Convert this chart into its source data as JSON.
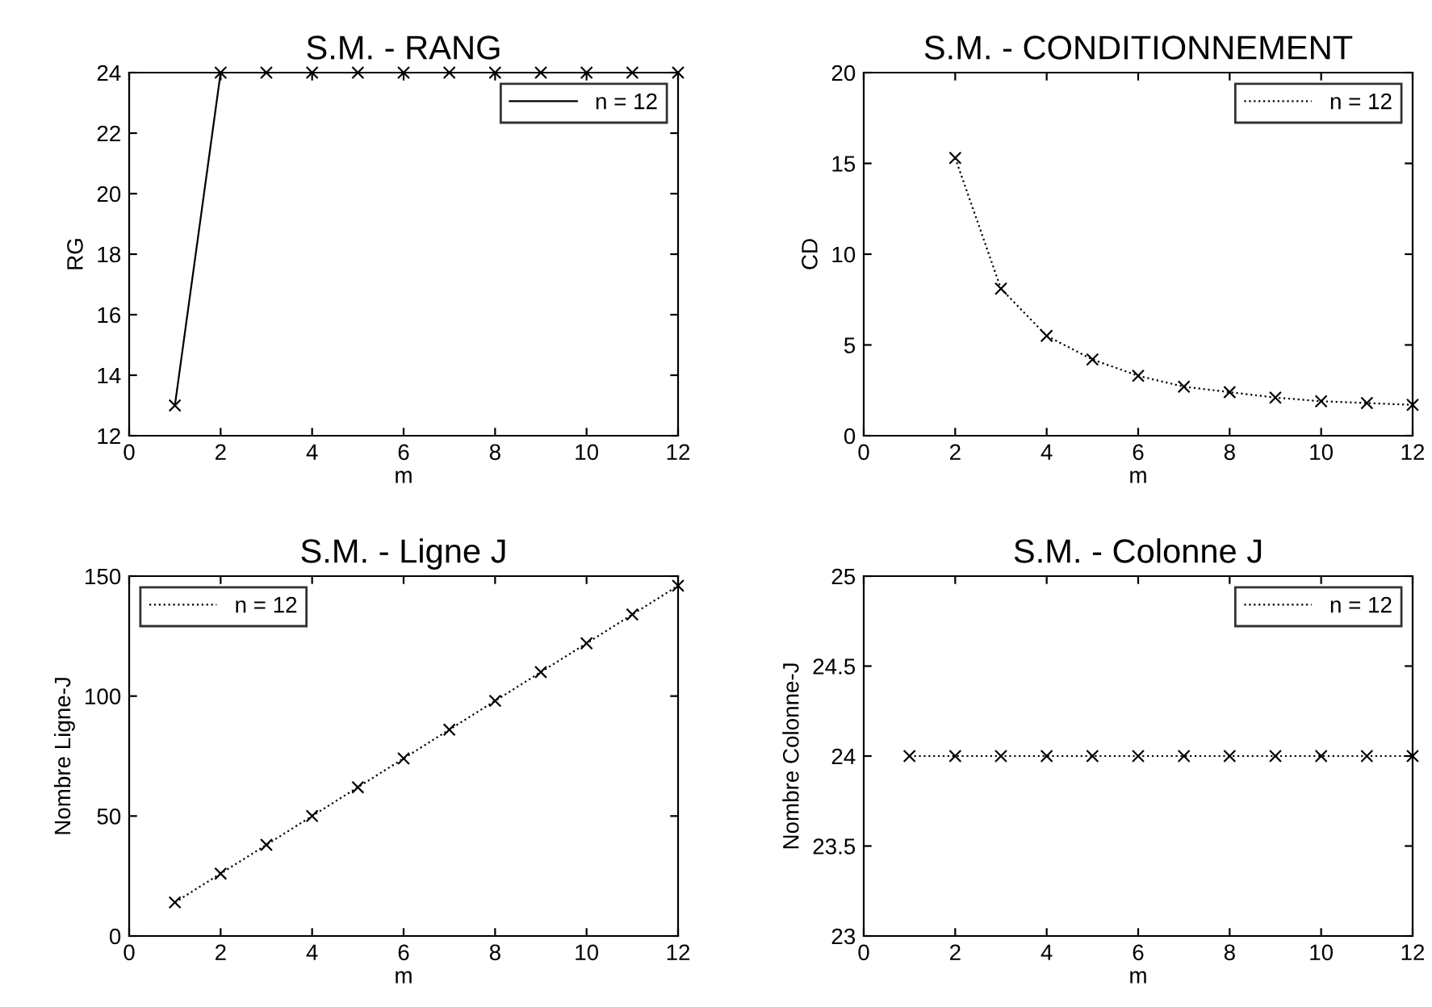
{
  "chart_data": [
    {
      "type": "line",
      "title": "S.M. - RANG",
      "xlabel": "m",
      "ylabel": "RG",
      "xlim": [
        0,
        12
      ],
      "xticks": [
        0,
        2,
        4,
        6,
        8,
        10,
        12
      ],
      "ylim": [
        12,
        24
      ],
      "yticks": [
        12,
        14,
        16,
        18,
        20,
        22,
        24
      ],
      "grid": false,
      "legend": "top right",
      "marker": "cross",
      "line_style": "solid",
      "series": [
        {
          "name": "n = 12",
          "color": "#000000",
          "x": [
            1,
            2,
            3,
            4,
            5,
            6,
            7,
            8,
            9,
            10,
            11,
            12
          ],
          "values": [
            13,
            24,
            24,
            24,
            24,
            24,
            24,
            24,
            24,
            24,
            24,
            24
          ]
        }
      ]
    },
    {
      "type": "line",
      "title": "S.M. - CONDITIONNEMENT",
      "xlabel": "m",
      "ylabel": "CD",
      "xlim": [
        0,
        12
      ],
      "xticks": [
        0,
        2,
        4,
        6,
        8,
        10,
        12
      ],
      "ylim": [
        0,
        20
      ],
      "yticks": [
        0,
        5,
        10,
        15,
        20
      ],
      "grid": false,
      "legend": "top right",
      "marker": "cross",
      "line_style": "dotted",
      "series": [
        {
          "name": "n = 12",
          "color": "#000000",
          "x": [
            2,
            3,
            4,
            5,
            6,
            7,
            8,
            9,
            10,
            11,
            12
          ],
          "values": [
            15.3,
            8.1,
            5.5,
            4.2,
            3.3,
            2.7,
            2.4,
            2.1,
            1.9,
            1.8,
            1.7
          ]
        }
      ]
    },
    {
      "type": "line",
      "title": "S.M. - Ligne J",
      "xlabel": "m",
      "ylabel": "Nombre Ligne-J",
      "xlim": [
        0,
        12
      ],
      "xticks": [
        0,
        2,
        4,
        6,
        8,
        10,
        12
      ],
      "ylim": [
        0,
        150
      ],
      "yticks": [
        0,
        50,
        100,
        150
      ],
      "grid": false,
      "legend": "top left",
      "marker": "cross",
      "line_style": "dotted",
      "series": [
        {
          "name": "n = 12",
          "color": "#000000",
          "x": [
            1,
            2,
            3,
            4,
            5,
            6,
            7,
            8,
            9,
            10,
            11,
            12
          ],
          "values": [
            14,
            26,
            38,
            50,
            62,
            74,
            86,
            98,
            110,
            122,
            134,
            146
          ]
        }
      ]
    },
    {
      "type": "line",
      "title": "S.M. - Colonne J",
      "xlabel": "m",
      "ylabel": "Nombre Colonne-J",
      "xlim": [
        0,
        12
      ],
      "xticks": [
        0,
        2,
        4,
        6,
        8,
        10,
        12
      ],
      "ylim": [
        23,
        25
      ],
      "yticks": [
        23,
        23.5,
        24,
        24.5,
        25
      ],
      "grid": false,
      "legend": "top right",
      "marker": "cross",
      "line_style": "dotted",
      "series": [
        {
          "name": "n = 12",
          "color": "#000000",
          "x": [
            1,
            2,
            3,
            4,
            5,
            6,
            7,
            8,
            9,
            10,
            11,
            12
          ],
          "values": [
            24,
            24,
            24,
            24,
            24,
            24,
            24,
            24,
            24,
            24,
            24,
            24
          ]
        }
      ]
    }
  ]
}
